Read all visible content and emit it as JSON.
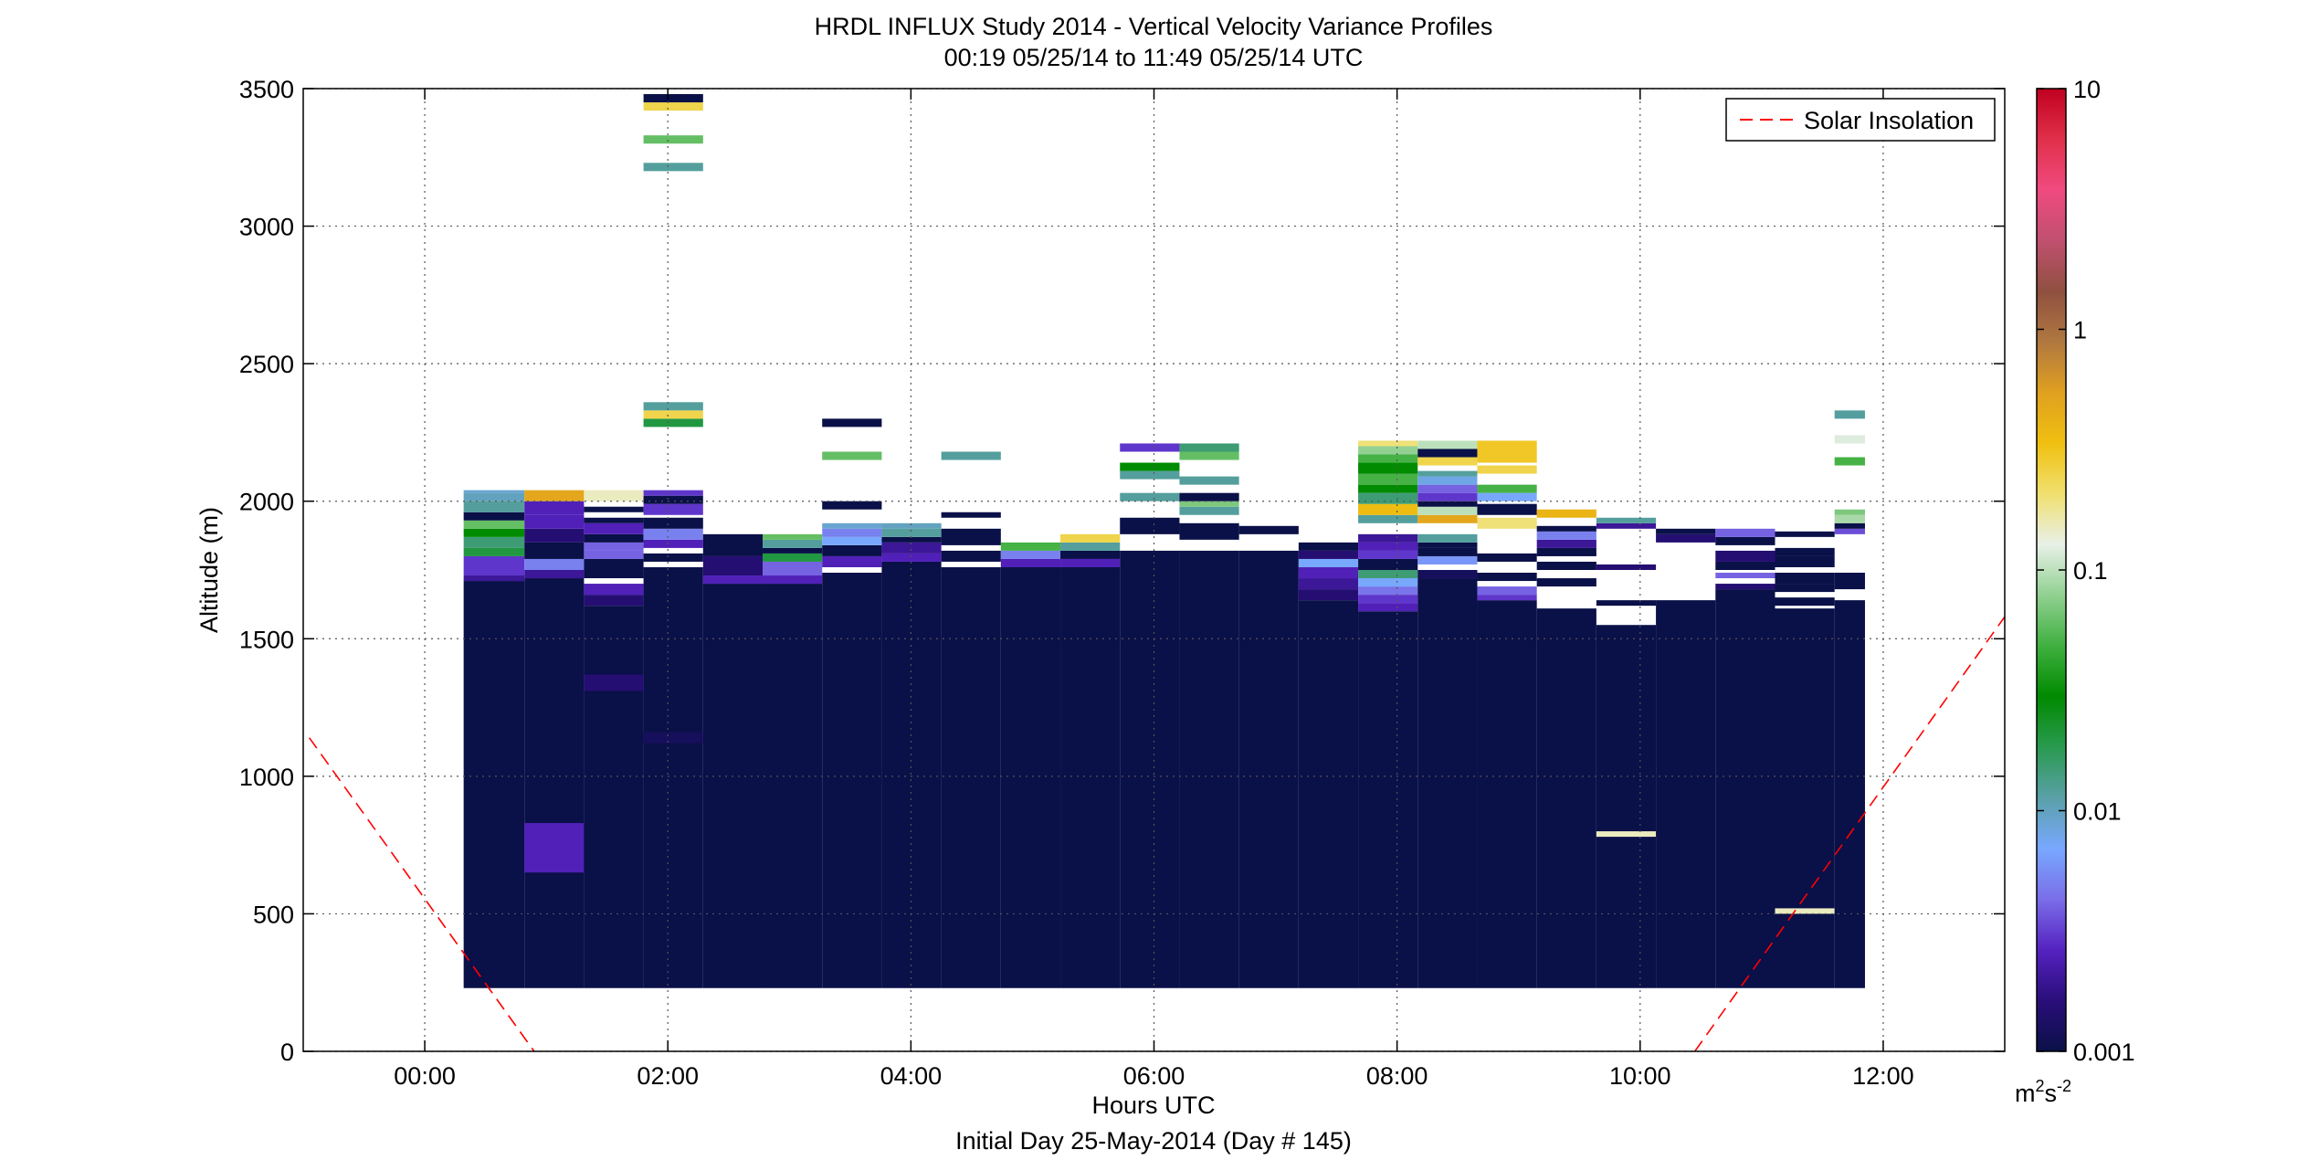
{
  "chart_data": {
    "type": "heatmap",
    "title": "HRDL INFLUX Study 2014 - Vertical Velocity Variance Profiles",
    "subtitle": "00:19 05/25/14 to 11:49 05/25/14  UTC",
    "xlabel": "Hours UTC",
    "xlabel2": "Initial Day 25-May-2014 (Day # 145)",
    "ylabel": "Altitude (m)",
    "xlim": [
      -1.0,
      13.0
    ],
    "ylim": [
      0,
      3500
    ],
    "x_ticks": [
      0,
      2,
      4,
      6,
      8,
      10,
      12
    ],
    "x_tick_labels": [
      "00:00",
      "02:00",
      "04:00",
      "06:00",
      "08:00",
      "10:00",
      "12:00"
    ],
    "y_ticks": [
      0,
      500,
      1000,
      1500,
      2000,
      2500,
      3000,
      3500
    ],
    "y_tick_labels": [
      "0",
      "500",
      "1000",
      "1500",
      "2000",
      "2500",
      "3000",
      "3500"
    ],
    "grid": true,
    "legend": {
      "placement": "top-right",
      "entries": [
        "Solar Insolation"
      ]
    },
    "colorbar": {
      "scale": "log",
      "range": [
        0.001,
        10
      ],
      "ticks": [
        0.001,
        0.01,
        0.1,
        1,
        10
      ],
      "tick_labels": [
        "0.001",
        "0.01",
        "0.1",
        "1",
        "10"
      ],
      "unit_base": "m",
      "unit_sup1": "2",
      "unit_mid": "s",
      "unit_sup2": "-2",
      "colors": [
        "#0a1048",
        "#2a0e7a",
        "#5522c0",
        "#7a6ee8",
        "#78a8ff",
        "#5aa0a8",
        "#2a9a50",
        "#008a00",
        "#40b040",
        "#90d090",
        "#e8f0e8",
        "#f0e070",
        "#f0c010",
        "#e0a020",
        "#b07840",
        "#905040",
        "#c05070",
        "#f04a80",
        "#e0304a",
        "#c00020"
      ]
    },
    "solar_insolation": {
      "color": "#ff0000",
      "segments": [
        {
          "x": [
            -0.95,
            0.9
          ],
          "y": [
            1140,
            0
          ]
        },
        {
          "x": [
            10.45,
            13.0
          ],
          "y": [
            0,
            1580
          ]
        }
      ]
    },
    "profiles": [
      {
        "t0": 0.32,
        "t1": 0.82,
        "base": 230,
        "top": 1710,
        "cells": [
          [
            1710,
            1730,
            0.002
          ],
          [
            1730,
            1800,
            0.003
          ],
          [
            1800,
            1830,
            0.02
          ],
          [
            1830,
            1870,
            0.015
          ],
          [
            1870,
            1900,
            0.03
          ],
          [
            1900,
            1930,
            0.06
          ],
          [
            1930,
            1960,
            0.001
          ],
          [
            1960,
            2000,
            0.012
          ],
          [
            2000,
            2030,
            0.01
          ],
          [
            2030,
            2040,
            0.009
          ]
        ]
      },
      {
        "t0": 0.82,
        "t1": 1.31,
        "base": 230,
        "top": 1720,
        "cells": [
          [
            650,
            830,
            0.0025
          ],
          [
            1720,
            1750,
            0.002
          ],
          [
            1750,
            1790,
            0.005
          ],
          [
            1790,
            1850,
            0.001
          ],
          [
            1850,
            1900,
            0.0015
          ],
          [
            1900,
            1950,
            0.0025
          ],
          [
            1950,
            2000,
            0.0025
          ],
          [
            2000,
            2040,
            0.5
          ]
        ]
      },
      {
        "t0": 1.31,
        "t1": 1.8,
        "base": 230,
        "top": 1620,
        "cells": [
          [
            1310,
            1370,
            0.0015
          ],
          [
            1620,
            1660,
            0.0015
          ],
          [
            1660,
            1700,
            0.0025
          ],
          [
            1720,
            1790,
            0.001
          ],
          [
            1790,
            1820,
            0.004
          ],
          [
            1820,
            1850,
            0.004
          ],
          [
            1850,
            1880,
            0.001
          ],
          [
            1880,
            1920,
            0.0025
          ],
          [
            1920,
            1940,
            0.001
          ],
          [
            1960,
            1980,
            0.001
          ],
          [
            2000,
            2040,
            0.15
          ]
        ]
      },
      {
        "t0": 1.8,
        "t1": 2.29,
        "base": 230,
        "top": 1760,
        "cells": [
          [
            1120,
            1160,
            0.0012
          ],
          [
            1780,
            1810,
            0.001
          ],
          [
            1830,
            1860,
            0.0025
          ],
          [
            1860,
            1900,
            0.005
          ],
          [
            1900,
            1940,
            0.001
          ],
          [
            1950,
            1990,
            0.003
          ],
          [
            1990,
            2020,
            0.001
          ],
          [
            2020,
            2040,
            0.003
          ],
          [
            2270,
            2300,
            0.02
          ],
          [
            2300,
            2330,
            0.25
          ],
          [
            2330,
            2360,
            0.012
          ],
          [
            3200,
            3230,
            0.012
          ],
          [
            3300,
            3330,
            0.06
          ],
          [
            3420,
            3450,
            0.25
          ],
          [
            3450,
            3480,
            0.001
          ]
        ]
      },
      {
        "t0": 2.29,
        "t1": 2.78,
        "base": 230,
        "top": 1700,
        "cells": [
          [
            1700,
            1730,
            0.0025
          ],
          [
            1730,
            1800,
            0.0015
          ],
          [
            1800,
            1880,
            0.001
          ]
        ]
      },
      {
        "t0": 2.78,
        "t1": 3.27,
        "base": 230,
        "top": 1700,
        "cells": [
          [
            1700,
            1730,
            0.0025
          ],
          [
            1730,
            1780,
            0.004
          ],
          [
            1780,
            1810,
            0.02
          ],
          [
            1810,
            1830,
            0.001
          ],
          [
            1830,
            1860,
            0.012
          ],
          [
            1860,
            1880,
            0.06
          ]
        ]
      },
      {
        "t0": 3.27,
        "t1": 3.76,
        "base": 230,
        "top": 1740,
        "cells": [
          [
            1760,
            1800,
            0.0025
          ],
          [
            1800,
            1840,
            0.001
          ],
          [
            1840,
            1870,
            0.007
          ],
          [
            1870,
            1900,
            0.005
          ],
          [
            1900,
            1920,
            0.009
          ],
          [
            1970,
            2000,
            0.001
          ],
          [
            2150,
            2180,
            0.06
          ],
          [
            2270,
            2300,
            0.001
          ]
        ]
      },
      {
        "t0": 3.76,
        "t1": 4.25,
        "base": 230,
        "top": 1780,
        "cells": [
          [
            1780,
            1810,
            0.0025
          ],
          [
            1810,
            1850,
            0.002
          ],
          [
            1850,
            1870,
            0.001
          ],
          [
            1870,
            1900,
            0.012
          ],
          [
            1900,
            1920,
            0.01
          ]
        ]
      },
      {
        "t0": 4.25,
        "t1": 4.74,
        "base": 230,
        "top": 1760,
        "cells": [
          [
            1780,
            1820,
            0.001
          ],
          [
            1840,
            1900,
            0.001
          ],
          [
            1940,
            1960,
            0.001
          ],
          [
            2150,
            2180,
            0.012
          ]
        ]
      },
      {
        "t0": 4.74,
        "t1": 5.23,
        "base": 230,
        "top": 1760,
        "cells": [
          [
            1760,
            1790,
            0.0025
          ],
          [
            1790,
            1820,
            0.005
          ],
          [
            1820,
            1850,
            0.05
          ]
        ]
      },
      {
        "t0": 5.23,
        "t1": 5.72,
        "base": 230,
        "top": 1760,
        "cells": [
          [
            1760,
            1790,
            0.0025
          ],
          [
            1790,
            1820,
            0.001
          ],
          [
            1820,
            1850,
            0.012
          ],
          [
            1850,
            1880,
            0.25
          ]
        ]
      },
      {
        "t0": 5.72,
        "t1": 6.21,
        "base": 230,
        "top": 1820,
        "cells": [
          [
            1880,
            1940,
            0.001
          ],
          [
            2000,
            2030,
            0.012
          ],
          [
            2080,
            2110,
            0.012
          ],
          [
            2110,
            2140,
            0.03
          ],
          [
            2180,
            2210,
            0.003
          ]
        ]
      },
      {
        "t0": 6.21,
        "t1": 6.7,
        "base": 230,
        "top": 1820,
        "cells": [
          [
            1860,
            1920,
            0.001
          ],
          [
            1950,
            1980,
            0.012
          ],
          [
            1980,
            2000,
            0.07
          ],
          [
            2000,
            2030,
            0.001
          ],
          [
            2060,
            2090,
            0.012
          ],
          [
            2150,
            2180,
            0.06
          ],
          [
            2180,
            2210,
            0.015
          ]
        ]
      },
      {
        "t0": 6.7,
        "t1": 7.19,
        "base": 230,
        "top": 1820,
        "cells": [
          [
            1880,
            1910,
            0.001
          ]
        ]
      },
      {
        "t0": 7.19,
        "t1": 7.68,
        "base": 230,
        "top": 1640,
        "cells": [
          [
            1640,
            1680,
            0.0015
          ],
          [
            1680,
            1720,
            0.002
          ],
          [
            1720,
            1760,
            0.0025
          ],
          [
            1760,
            1790,
            0.007
          ],
          [
            1790,
            1820,
            0.0015
          ],
          [
            1820,
            1850,
            0.001
          ]
        ]
      },
      {
        "t0": 7.68,
        "t1": 8.17,
        "base": 230,
        "top": 1600,
        "cells": [
          [
            1600,
            1630,
            0.0025
          ],
          [
            1630,
            1660,
            0.003
          ],
          [
            1660,
            1690,
            0.0045
          ],
          [
            1690,
            1720,
            0.007
          ],
          [
            1720,
            1750,
            0.015
          ],
          [
            1750,
            1790,
            0.001
          ],
          [
            1790,
            1820,
            0.003
          ],
          [
            1820,
            1850,
            0.0025
          ],
          [
            1850,
            1880,
            0.002
          ],
          [
            1920,
            1950,
            0.012
          ],
          [
            1950,
            1990,
            0.35
          ],
          [
            1990,
            2030,
            0.015
          ],
          [
            2030,
            2060,
            0.03
          ],
          [
            2060,
            2100,
            0.05
          ],
          [
            2100,
            2140,
            0.03
          ],
          [
            2140,
            2170,
            0.05
          ],
          [
            2170,
            2200,
            0.08
          ],
          [
            2200,
            2220,
            0.2
          ]
        ]
      },
      {
        "t0": 8.17,
        "t1": 8.66,
        "base": 230,
        "top": 1720,
        "cells": [
          [
            1720,
            1750,
            0.0012
          ],
          [
            1770,
            1800,
            0.006
          ],
          [
            1800,
            1830,
            0.001
          ],
          [
            1830,
            1850,
            0.001
          ],
          [
            1850,
            1880,
            0.012
          ],
          [
            1920,
            1950,
            0.5
          ],
          [
            1950,
            1980,
            0.1
          ],
          [
            1980,
            2000,
            0.001
          ],
          [
            2000,
            2030,
            0.003
          ],
          [
            2030,
            2060,
            0.004
          ],
          [
            2060,
            2090,
            0.008
          ],
          [
            2090,
            2110,
            0.012
          ],
          [
            2130,
            2160,
            0.25
          ],
          [
            2160,
            2190,
            0.001
          ],
          [
            2190,
            2220,
            0.1
          ]
        ]
      },
      {
        "t0": 8.66,
        "t1": 9.15,
        "base": 230,
        "top": 1640,
        "cells": [
          [
            1640,
            1660,
            0.003
          ],
          [
            1660,
            1690,
            0.004
          ],
          [
            1710,
            1740,
            0.001
          ],
          [
            1780,
            1810,
            0.001
          ],
          [
            1900,
            1940,
            0.2
          ],
          [
            1950,
            1990,
            0.001
          ],
          [
            2000,
            2030,
            0.007
          ],
          [
            2030,
            2060,
            0.05
          ],
          [
            2100,
            2130,
            0.25
          ],
          [
            2140,
            2220,
            0.3
          ]
        ]
      },
      {
        "t0": 9.15,
        "t1": 9.64,
        "base": 230,
        "top": 1610,
        "cells": [
          [
            1690,
            1720,
            0.001
          ],
          [
            1750,
            1780,
            0.001
          ],
          [
            1800,
            1830,
            0.001
          ],
          [
            1830,
            1860,
            0.002
          ],
          [
            1860,
            1890,
            0.005
          ],
          [
            1890,
            1910,
            0.001
          ],
          [
            1940,
            1970,
            0.4
          ]
        ]
      },
      {
        "t0": 9.64,
        "t1": 10.13,
        "base": 230,
        "top": 1550,
        "cells": [
          [
            780,
            800,
            0.15
          ],
          [
            1620,
            1640,
            0.001
          ],
          [
            1750,
            1770,
            0.0015
          ],
          [
            1900,
            1920,
            0.002
          ],
          [
            1920,
            1940,
            0.012
          ]
        ]
      },
      {
        "t0": 10.13,
        "t1": 10.62,
        "base": 230,
        "top": 1640,
        "cells": [
          [
            1850,
            1880,
            0.0015
          ],
          [
            1880,
            1900,
            0.001
          ]
        ]
      },
      {
        "t0": 10.62,
        "t1": 11.11,
        "base": 230,
        "top": 1680,
        "cells": [
          [
            1680,
            1700,
            0.0015
          ],
          [
            1720,
            1740,
            0.004
          ],
          [
            1750,
            1780,
            0.001
          ],
          [
            1780,
            1820,
            0.0015
          ],
          [
            1840,
            1870,
            0.001
          ],
          [
            1870,
            1900,
            0.004
          ]
        ]
      },
      {
        "t0": 11.11,
        "t1": 11.6,
        "base": 230,
        "top": 1610,
        "cells": [
          [
            500,
            520,
            0.15
          ],
          [
            1620,
            1650,
            0.001
          ],
          [
            1670,
            1700,
            0.001
          ],
          [
            1700,
            1740,
            0.001
          ],
          [
            1760,
            1800,
            0.001
          ],
          [
            1800,
            1830,
            0.001
          ],
          [
            1870,
            1890,
            0.001
          ]
        ]
      },
      {
        "t0": 11.6,
        "t1": 11.85,
        "base": 230,
        "top": 1640,
        "cells": [
          [
            1680,
            1740,
            0.001
          ],
          [
            1880,
            1900,
            0.0035
          ],
          [
            1900,
            1920,
            0.001
          ],
          [
            1920,
            1950,
            0.09
          ],
          [
            1950,
            1970,
            0.07
          ],
          [
            2130,
            2160,
            0.05
          ],
          [
            2210,
            2240,
            0.12
          ],
          [
            2300,
            2330,
            0.012
          ]
        ]
      }
    ]
  }
}
